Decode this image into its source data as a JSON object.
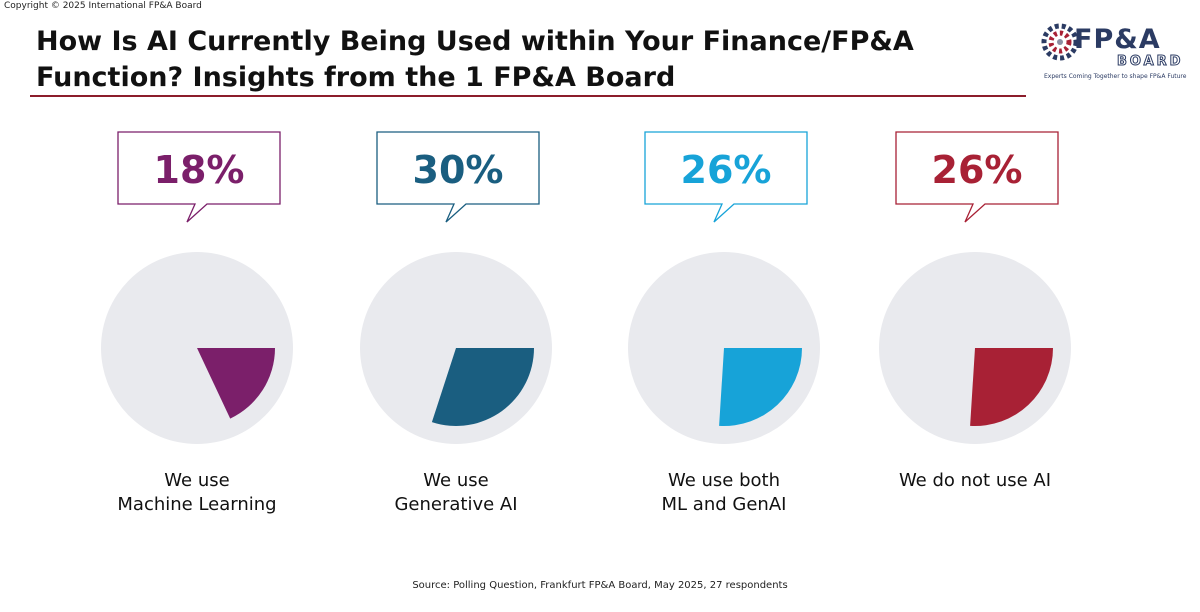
{
  "copyright": "Copyright © 2025 International FP&A Board",
  "header": {
    "title_line1": "How Is AI Currently Being Used within Your Finance/FP&A",
    "title_line2": "Function? Insights from the 1 FP&A Board"
  },
  "logo": {
    "main": "FP&A",
    "sub": "BOARD",
    "tagline": "Experts Coming Together to shape FP&A Future"
  },
  "chart_data": {
    "type": "pie",
    "title": "",
    "categories": [
      {
        "line1": "We use",
        "line2": "Machine Learning"
      },
      {
        "line1": "We use",
        "line2": "Generative AI"
      },
      {
        "line1": "We use both",
        "line2": "ML and GenAI"
      },
      {
        "line1": "We do not use AI",
        "line2": ""
      }
    ],
    "values": [
      18,
      30,
      26,
      26
    ],
    "value_labels": [
      "18%",
      "30%",
      "26%",
      "26%"
    ],
    "colors": [
      "#7b1f6a",
      "#1a5e80",
      "#17a3d8",
      "#a82135"
    ],
    "track_color": "#e9eaee",
    "legend": "none",
    "grid": false
  },
  "source": "Source: Polling Question, Frankfurt FP&A Board, May 2025, 27 respondents"
}
